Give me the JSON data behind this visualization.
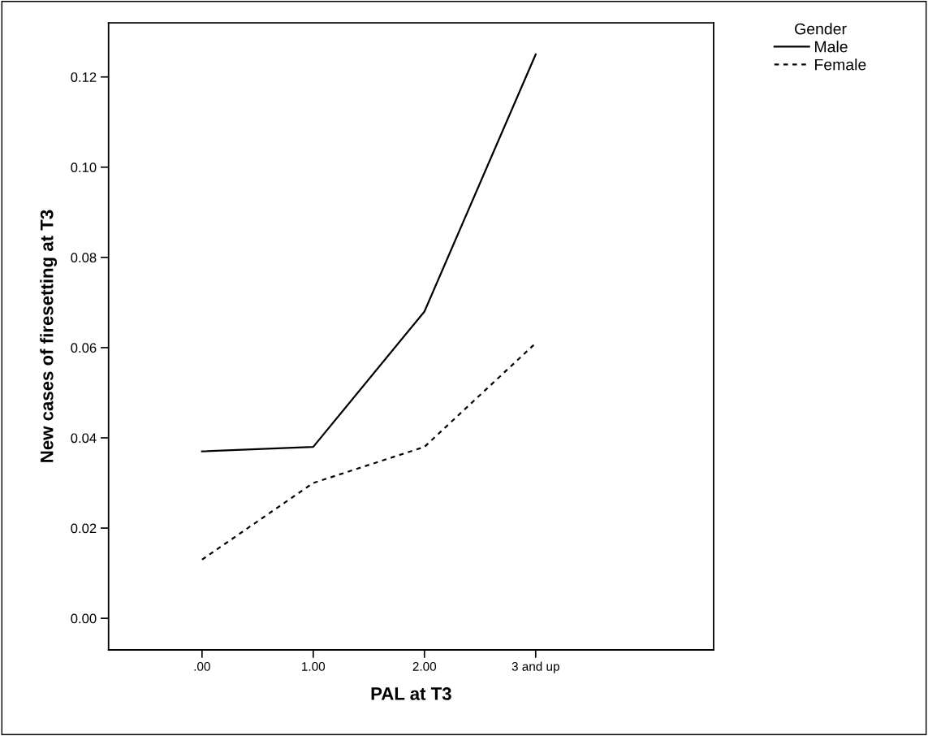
{
  "chart_data": {
    "type": "line",
    "xlabel": "PAL at T3",
    "ylabel": "New cases of firesetting at T3",
    "categories": [
      ".00",
      "1.00",
      "2.00",
      "3 and up"
    ],
    "series": [
      {
        "name": "Male",
        "color": "#000000",
        "line_style": "solid",
        "values": [
          0.037,
          0.038,
          0.068,
          0.125
        ]
      },
      {
        "name": "Female",
        "color": "#000000",
        "line_style": "dashed",
        "values": [
          0.013,
          0.03,
          0.038,
          0.061
        ]
      }
    ],
    "legend_title": "Gender",
    "legend": "top right",
    "marker": "none",
    "grid": false,
    "ylim": [
      -0.007,
      0.132
    ],
    "yticks": [
      {
        "value": 0,
        "label": "0.00"
      },
      {
        "value": 0.02,
        "label": "0.02"
      },
      {
        "value": 0.04,
        "label": "0.04"
      },
      {
        "value": 0.06,
        "label": "0.06"
      },
      {
        "value": 0.08,
        "label": "0.08"
      },
      {
        "value": 0.1,
        "label": "0.10"
      },
      {
        "value": 0.12,
        "label": "0.12"
      }
    ]
  }
}
